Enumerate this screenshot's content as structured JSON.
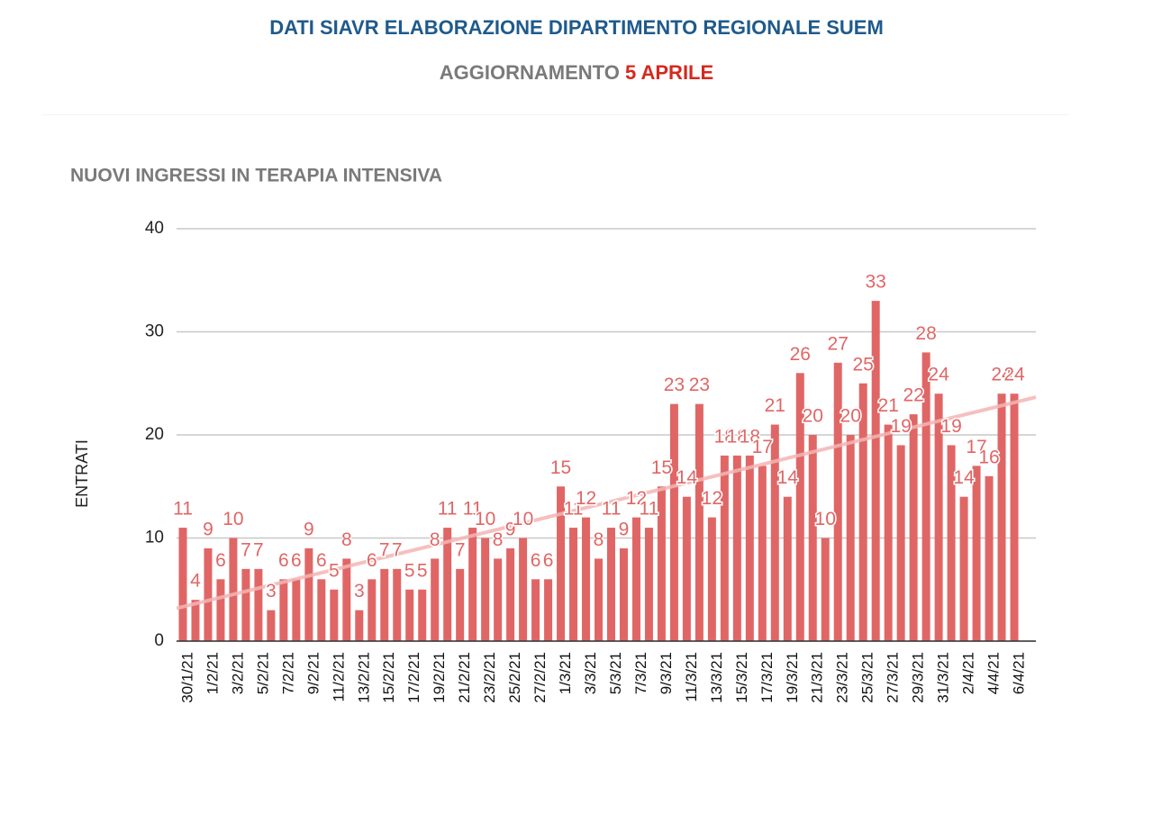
{
  "header": {
    "title": "DATI SIAVR ELABORAZIONE DIPARTIMENTO REGIONALE SUEM",
    "update_label": "AGGIORNAMENTO",
    "update_date": "5 APRILE"
  },
  "chart_data": {
    "type": "bar",
    "title": "NUOVI INGRESSI IN TERAPIA INTENSIVA",
    "y_label": "ENTRATI",
    "categories": [
      "30/1/21",
      null,
      "1/2/21",
      null,
      "3/2/21",
      null,
      "5/2/21",
      null,
      "7/2/21",
      null,
      "9/2/21",
      null,
      "11/2/21",
      null,
      "13/2/21",
      null,
      "15/2/21",
      null,
      "17/2/21",
      null,
      "19/2/21",
      null,
      "21/2/21",
      null,
      "23/2/21",
      null,
      "25/2/21",
      null,
      "27/2/21",
      null,
      "1/3/21",
      null,
      "3/3/21",
      null,
      "5/3/21",
      null,
      "7/3/21",
      null,
      "9/3/21",
      null,
      "11/3/21",
      null,
      "13/3/21",
      null,
      "15/3/21",
      null,
      "17/3/21",
      null,
      "19/3/21",
      null,
      "21/3/21",
      null,
      "23/3/21",
      null,
      "25/3/21",
      null,
      "27/3/21",
      null,
      "29/3/21",
      null,
      "31/3/21",
      null,
      "2/4/21",
      null,
      "4/4/21",
      null,
      "6/4/21"
    ],
    "values": [
      11,
      4,
      9,
      6,
      10,
      7,
      7,
      3,
      6,
      6,
      9,
      6,
      5,
      8,
      3,
      6,
      7,
      7,
      5,
      5,
      8,
      11,
      7,
      11,
      10,
      8,
      9,
      10,
      6,
      6,
      15,
      11,
      12,
      8,
      11,
      9,
      12,
      11,
      15,
      23,
      14,
      23,
      12,
      18,
      18,
      18,
      17,
      21,
      14,
      26,
      20,
      10,
      27,
      20,
      25,
      33,
      21,
      19,
      22,
      28,
      24,
      19,
      14,
      17,
      16,
      24,
      24
    ],
    "color": "#e06666",
    "trendline_color": "#f5b5b5",
    "ylim": [
      0,
      40
    ],
    "yticks": [
      0,
      10,
      20,
      30,
      40
    ],
    "grid": true
  }
}
